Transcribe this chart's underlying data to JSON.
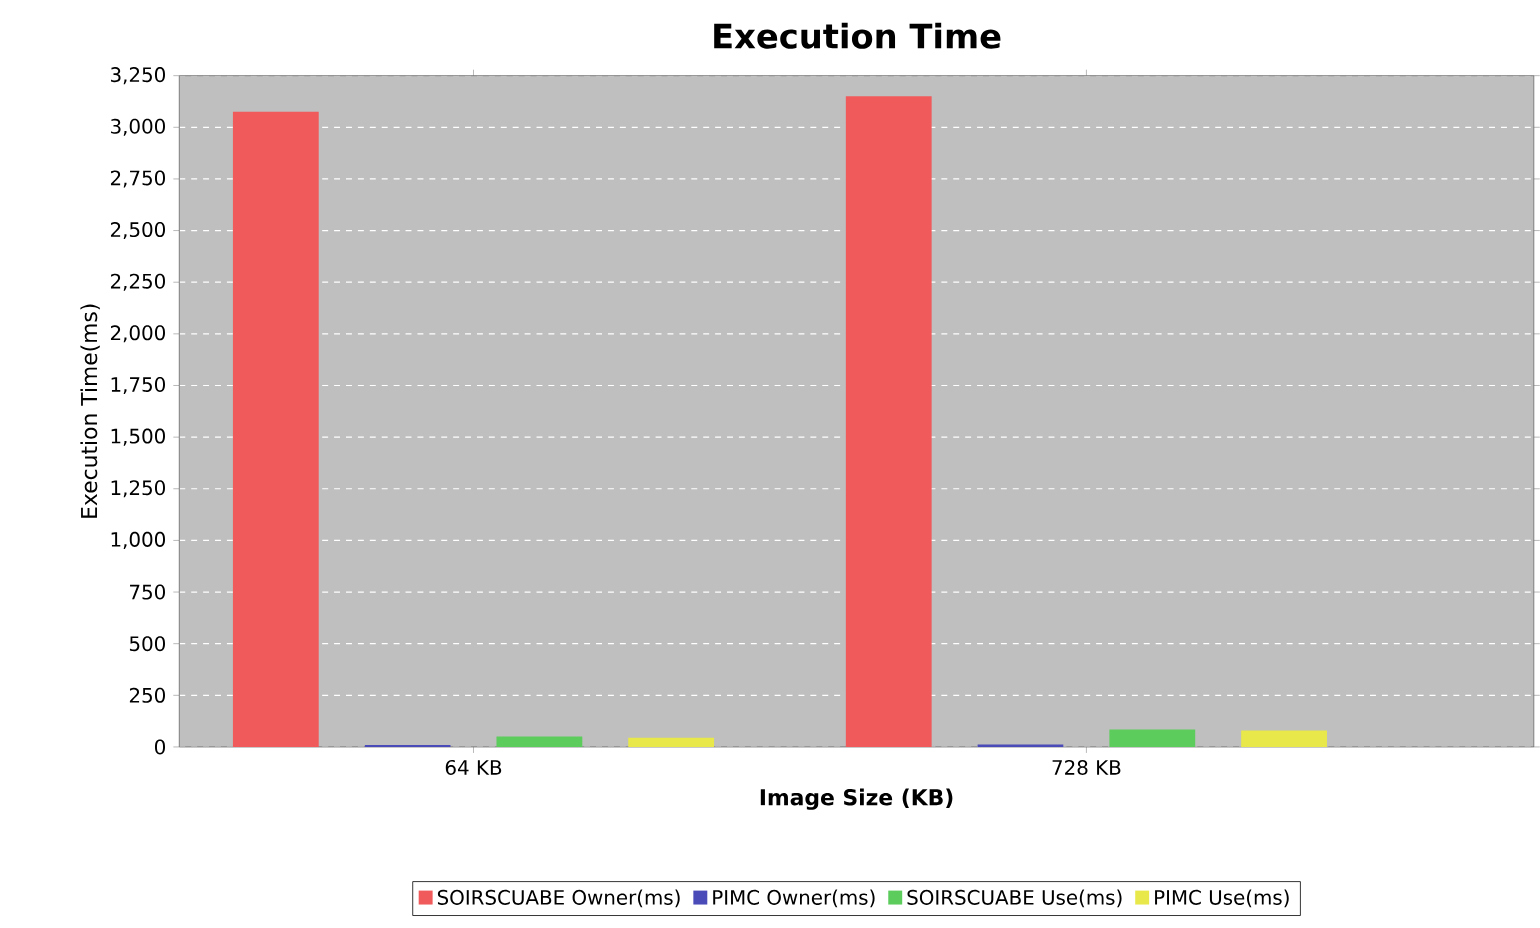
{
  "chart_data": {
    "type": "bar",
    "title": "Execution Time",
    "xlabel": "Image Size (KB)",
    "ylabel": "Execution Time(ms)",
    "categories": [
      "64 KB",
      "728 KB"
    ],
    "series": [
      {
        "name": "SOIRSCUABE Owner(ms)",
        "color": "#f05a5a",
        "values": [
          3075,
          3150
        ]
      },
      {
        "name": "PIMC Owner(ms)",
        "color": "#4a4ab8",
        "values": [
          10,
          12
        ]
      },
      {
        "name": "SOIRSCUABE Use(ms)",
        "color": "#5ccc5c",
        "values": [
          50,
          85
        ]
      },
      {
        "name": "PIMC Use(ms)",
        "color": "#e8e84a",
        "values": [
          45,
          80
        ]
      }
    ],
    "ylim": [
      0,
      3250
    ],
    "yticks": [
      0,
      250,
      500,
      750,
      {
        "value": 1000,
        "label": "1,000"
      },
      {
        "value": 1250,
        "label": "1,250"
      },
      {
        "value": 1500,
        "label": "1,500"
      },
      {
        "value": 1750,
        "label": "1,750"
      },
      {
        "value": 2000,
        "label": "2,000"
      },
      {
        "value": 2250,
        "label": "2,250"
      },
      {
        "value": 2500,
        "label": "2,500"
      },
      {
        "value": 2750,
        "label": "2,750"
      },
      {
        "value": 3000,
        "label": "3,000"
      },
      {
        "value": 3250,
        "label": "3,250"
      }
    ],
    "grid": "y",
    "legend": "bottom"
  }
}
